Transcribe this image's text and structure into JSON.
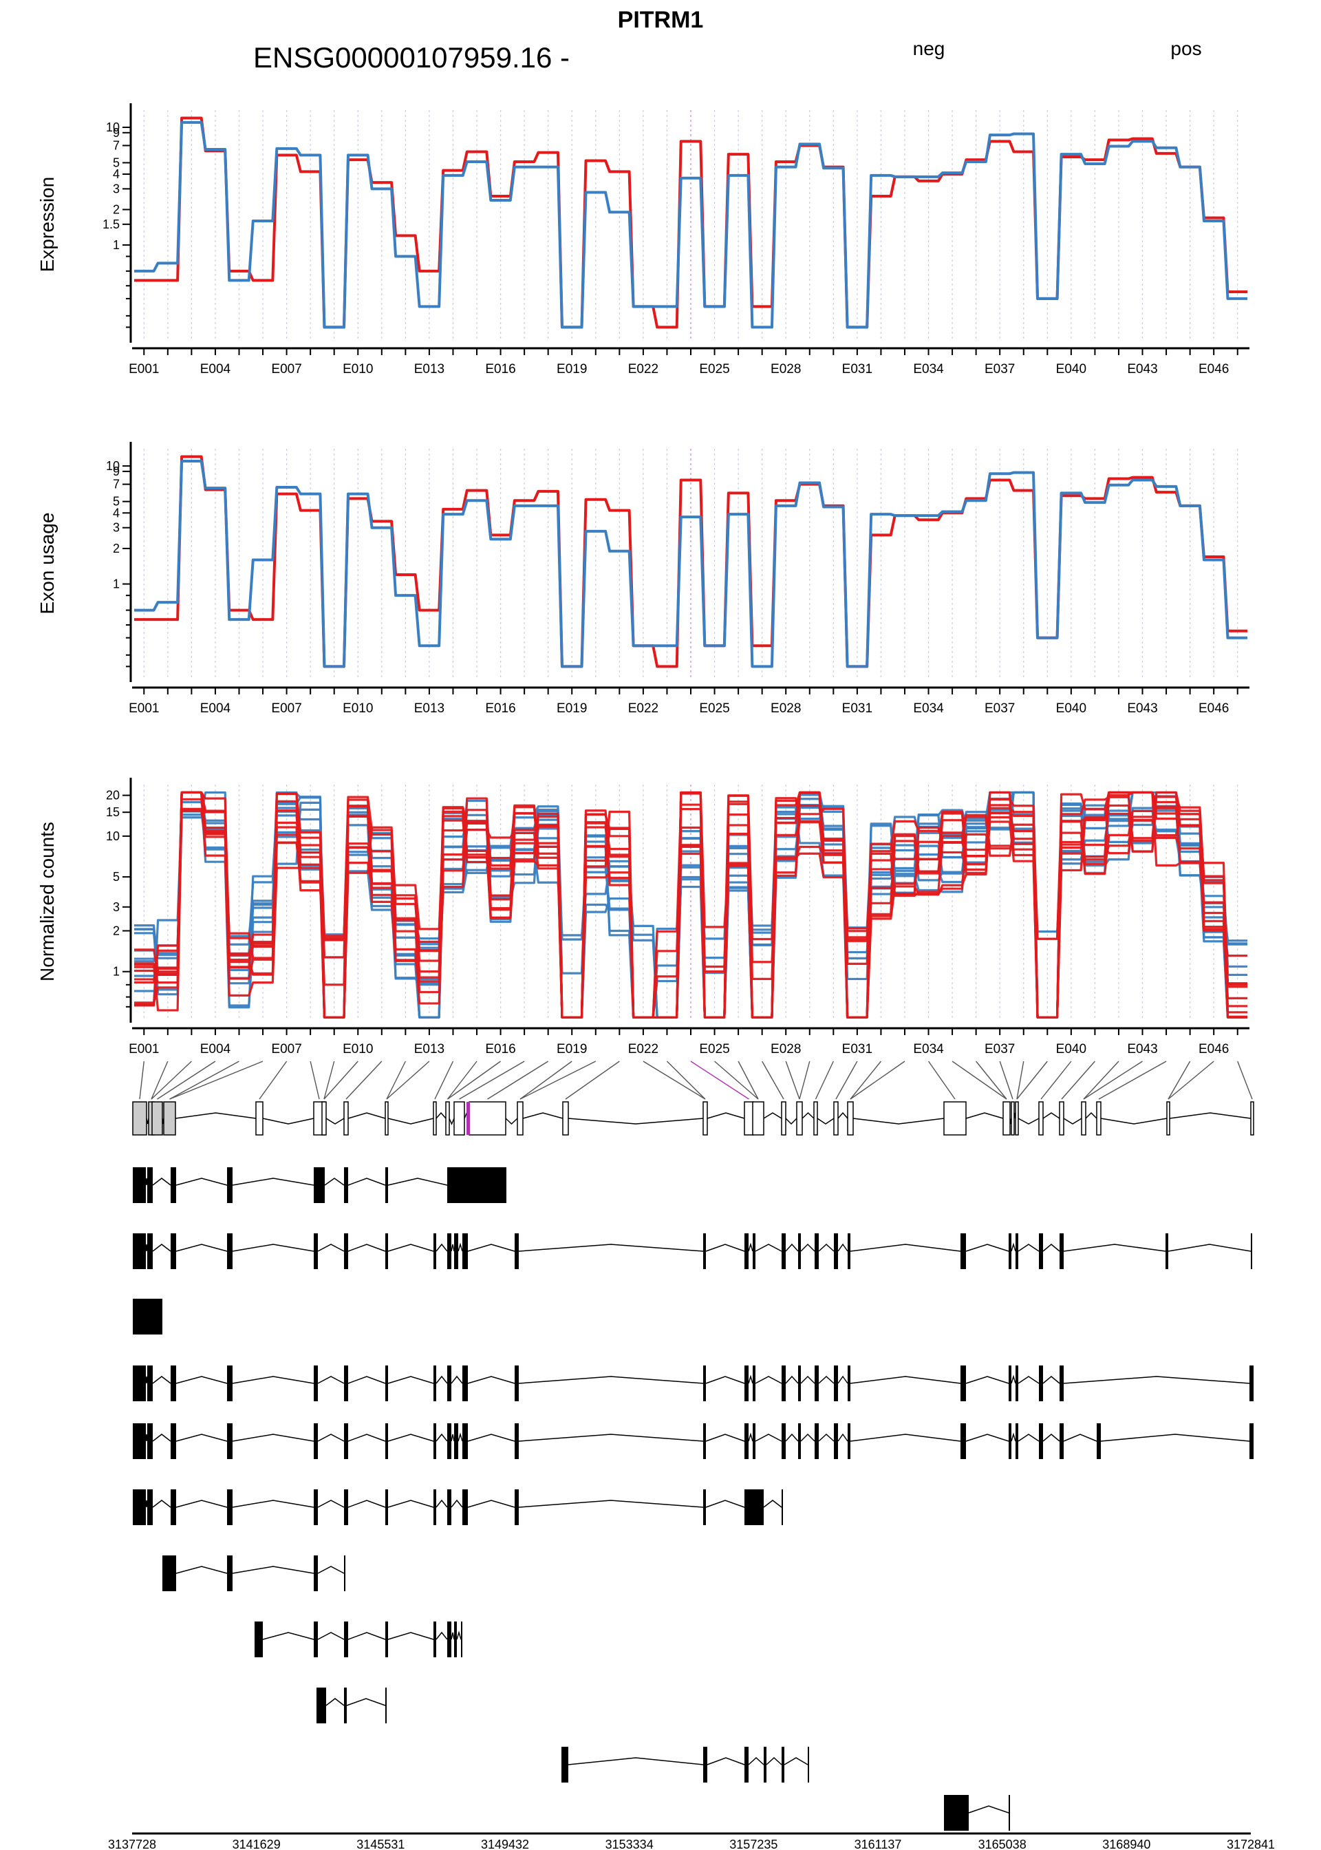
{
  "header": {
    "gene": "PITRM1",
    "gene_id": "ENSG00000107959.16 -",
    "legend": [
      {
        "label": "neg",
        "color": "#e31a1c"
      },
      {
        "label": "pos",
        "color": "#3a7fc1"
      }
    ]
  },
  "colors": {
    "neg": "#e31a1c",
    "pos": "#3a7fc1",
    "highlight": "#b030b0",
    "axis": "#000000"
  },
  "chart_data": [
    {
      "type": "line",
      "ylabel": "Expression",
      "yscale": "log",
      "ytick_labels": [
        "1",
        "1.5",
        "2",
        "3",
        "4",
        "5",
        "7",
        "9",
        "10"
      ],
      "x_tick_labels": [
        "E001",
        "E004",
        "E007",
        "E010",
        "E013",
        "E016",
        "E019",
        "E022",
        "E025",
        "E028",
        "E031",
        "E034",
        "E037",
        "E040",
        "E043",
        "E046"
      ],
      "series": [
        {
          "name": "neg",
          "values": [
            0.5,
            0.5,
            12,
            6.3,
            0.6,
            0.5,
            5.8,
            4.2,
            0.2,
            5.3,
            3.4,
            1.2,
            0.6,
            4.3,
            6.2,
            2.6,
            5.1,
            6.1,
            0.2,
            5.2,
            4.2,
            0.3,
            0.2,
            7.6,
            0.3,
            5.9,
            0.3,
            5.1,
            7.0,
            4.6,
            0.2,
            2.6,
            3.8,
            3.5,
            4.0,
            5.3,
            7.6,
            6.2,
            0.35,
            5.6,
            5.3,
            7.8,
            8.0,
            6.0,
            4.6,
            1.7,
            0.4
          ]
        },
        {
          "name": "pos",
          "values": [
            0.6,
            0.7,
            11,
            6.5,
            0.5,
            1.6,
            6.6,
            5.8,
            0.2,
            5.8,
            3.0,
            0.8,
            0.3,
            3.9,
            5.1,
            2.4,
            4.6,
            4.6,
            0.2,
            2.8,
            1.9,
            0.3,
            0.3,
            3.7,
            0.3,
            3.9,
            0.2,
            4.6,
            7.2,
            4.5,
            0.2,
            3.9,
            3.8,
            3.8,
            4.1,
            5.1,
            8.6,
            8.8,
            0.35,
            5.9,
            4.9,
            6.9,
            7.6,
            6.7,
            4.6,
            1.6,
            0.35
          ]
        }
      ]
    },
    {
      "type": "line",
      "ylabel": "Exon usage",
      "yscale": "log",
      "ytick_labels": [
        "1",
        "2",
        "3",
        "4",
        "5",
        "7",
        "9",
        "10"
      ],
      "x_tick_labels": [
        "E001",
        "E004",
        "E007",
        "E010",
        "E013",
        "E016",
        "E019",
        "E022",
        "E025",
        "E028",
        "E031",
        "E034",
        "E037",
        "E040",
        "E043",
        "E046"
      ],
      "series": [
        {
          "name": "neg",
          "values": [
            0.5,
            0.5,
            12,
            6.3,
            0.6,
            0.5,
            5.8,
            4.2,
            0.2,
            5.3,
            3.4,
            1.2,
            0.6,
            4.3,
            6.2,
            2.6,
            5.1,
            6.1,
            0.2,
            5.2,
            4.2,
            0.3,
            0.2,
            7.6,
            0.3,
            5.9,
            0.3,
            5.1,
            7.0,
            4.6,
            0.2,
            2.6,
            3.8,
            3.5,
            4.0,
            5.3,
            7.6,
            6.2,
            0.35,
            5.6,
            5.3,
            7.8,
            8.0,
            6.0,
            4.6,
            1.7,
            0.4
          ]
        },
        {
          "name": "pos",
          "values": [
            0.6,
            0.7,
            11,
            6.5,
            0.5,
            1.6,
            6.6,
            5.8,
            0.2,
            5.8,
            3.0,
            0.8,
            0.3,
            3.9,
            5.1,
            2.4,
            4.6,
            4.6,
            0.2,
            2.8,
            1.9,
            0.3,
            0.3,
            3.7,
            0.3,
            3.9,
            0.2,
            4.6,
            7.2,
            4.5,
            0.2,
            3.9,
            3.8,
            3.8,
            4.1,
            5.1,
            8.6,
            8.8,
            0.35,
            5.9,
            4.9,
            6.9,
            7.6,
            6.7,
            4.6,
            1.6,
            0.35
          ]
        }
      ]
    },
    {
      "type": "line",
      "ylabel": "Normalized counts",
      "yscale": "log",
      "ytick_labels": [
        "1",
        "2",
        "3",
        "5",
        "10",
        "15",
        "20"
      ],
      "x_tick_labels": [
        "E001",
        "E004",
        "E007",
        "E010",
        "E013",
        "E016",
        "E019",
        "E022",
        "E025",
        "E028",
        "E031",
        "E034",
        "E037",
        "E040",
        "E043",
        "E046"
      ],
      "n_samples_per_group": 10
    },
    {
      "type": "gene_model",
      "x_tick_labels": [
        "3137728",
        "3141629",
        "3145531",
        "3149432",
        "3153334",
        "3157235",
        "3161137",
        "3165038",
        "3168940",
        "3172841"
      ],
      "exon_highlighted": "E024",
      "transcript_count": 11
    }
  ]
}
